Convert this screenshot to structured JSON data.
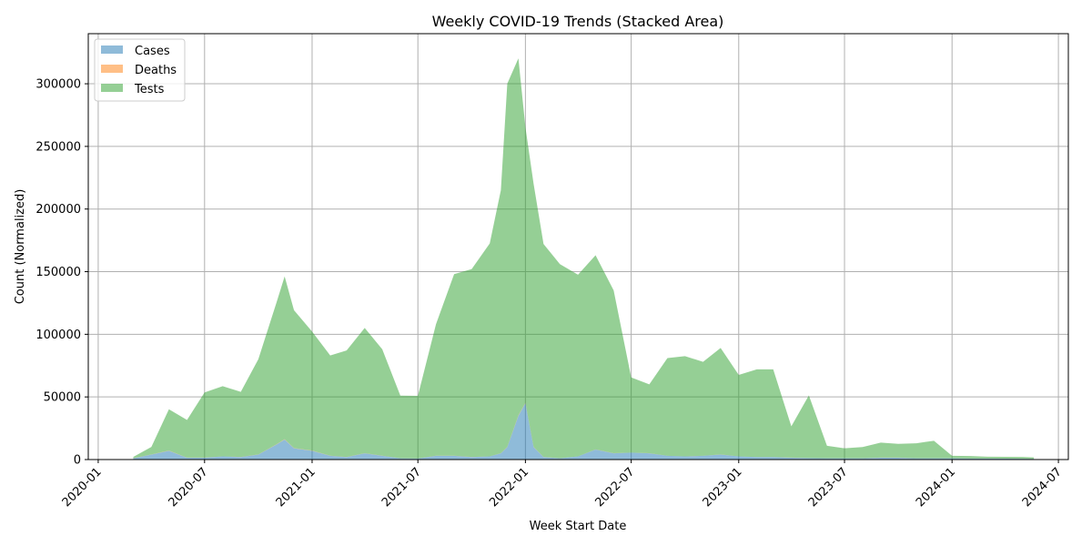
{
  "chart_data": {
    "type": "area",
    "stacked": true,
    "title": "Weekly COVID-19 Trends (Stacked Area)",
    "xlabel": "Week Start Date",
    "ylabel": "Count (Normalized)",
    "xlim": [
      "2019-12-15",
      "2024-07-18"
    ],
    "ylim": [
      0,
      340000
    ],
    "xticks": [
      "2020-01-01",
      "2020-07-01",
      "2021-01-01",
      "2021-07-01",
      "2022-01-01",
      "2022-07-01",
      "2023-01-01",
      "2023-07-01",
      "2024-01-01",
      "2024-07-01"
    ],
    "xtick_labels": [
      "2020-01",
      "2020-07",
      "2021-01",
      "2021-07",
      "2022-01",
      "2022-07",
      "2023-01",
      "2023-07",
      "2024-01",
      "2024-07"
    ],
    "yticks": [
      0,
      50000,
      100000,
      150000,
      200000,
      250000,
      300000
    ],
    "ytick_labels": [
      "0",
      "50000",
      "100000",
      "150000",
      "200000",
      "250000",
      "300000"
    ],
    "grid": true,
    "legend_position": "top-left",
    "x": [
      "2020-03-01",
      "2020-04-01",
      "2020-05-01",
      "2020-06-01",
      "2020-07-01",
      "2020-08-01",
      "2020-09-01",
      "2020-10-01",
      "2020-11-01",
      "2020-11-15",
      "2020-12-01",
      "2021-01-01",
      "2021-02-01",
      "2021-03-01",
      "2021-04-01",
      "2021-05-01",
      "2021-06-01",
      "2021-07-01",
      "2021-08-01",
      "2021-09-01",
      "2021-10-01",
      "2021-11-01",
      "2021-11-20",
      "2021-12-01",
      "2021-12-20",
      "2022-01-01",
      "2022-01-15",
      "2022-02-01",
      "2022-03-01",
      "2022-04-01",
      "2022-05-01",
      "2022-06-01",
      "2022-07-01",
      "2022-08-01",
      "2022-09-01",
      "2022-10-01",
      "2022-11-01",
      "2022-12-01",
      "2023-01-01",
      "2023-02-01",
      "2023-03-01",
      "2023-04-01",
      "2023-05-01",
      "2023-06-01",
      "2023-07-01",
      "2023-08-01",
      "2023-09-01",
      "2023-10-01",
      "2023-11-01",
      "2023-12-01",
      "2024-01-01",
      "2024-02-01",
      "2024-03-01",
      "2024-04-01",
      "2024-05-01",
      "2024-05-20"
    ],
    "series": [
      {
        "name": "Cases",
        "color": "#1f77b4",
        "values": [
          1000,
          4000,
          7000,
          1500,
          1500,
          2500,
          2000,
          4000,
          12000,
          16000,
          9000,
          7000,
          3000,
          2000,
          5000,
          3000,
          1000,
          800,
          3000,
          3000,
          2000,
          2500,
          5000,
          10000,
          35000,
          45000,
          10000,
          2000,
          1000,
          2500,
          8000,
          5000,
          5500,
          5000,
          3000,
          2500,
          3000,
          4000,
          2500,
          2000,
          2000,
          1500,
          1200,
          1000,
          1000,
          1000,
          1500,
          1500,
          1000,
          1000,
          1000,
          800,
          800,
          700,
          600,
          500
        ]
      },
      {
        "name": "Deaths",
        "color": "#ff7f0e",
        "values": [
          50,
          100,
          150,
          80,
          60,
          60,
          60,
          100,
          200,
          250,
          200,
          180,
          100,
          60,
          80,
          60,
          30,
          20,
          60,
          60,
          50,
          50,
          80,
          150,
          300,
          350,
          150,
          50,
          30,
          40,
          80,
          60,
          60,
          60,
          40,
          40,
          40,
          50,
          40,
          30,
          30,
          25,
          20,
          15,
          15,
          15,
          15,
          15,
          15,
          15,
          10,
          10,
          10,
          10,
          10,
          10
        ]
      },
      {
        "name": "Tests",
        "color": "#2ca02c",
        "values": [
          1000,
          6000,
          33000,
          30000,
          52000,
          56000,
          52000,
          76000,
          113000,
          130000,
          110000,
          95000,
          80000,
          85000,
          100000,
          85000,
          50000,
          50000,
          105000,
          145000,
          150000,
          170000,
          210000,
          290000,
          285000,
          220000,
          210000,
          170000,
          155000,
          145000,
          155000,
          130000,
          60000,
          55000,
          78000,
          80000,
          75000,
          85000,
          65000,
          70000,
          70000,
          25000,
          50000,
          10000,
          8000,
          9000,
          12000,
          11000,
          12000,
          14000,
          2000,
          2000,
          1500,
          1500,
          1500,
          1200
        ]
      }
    ]
  }
}
